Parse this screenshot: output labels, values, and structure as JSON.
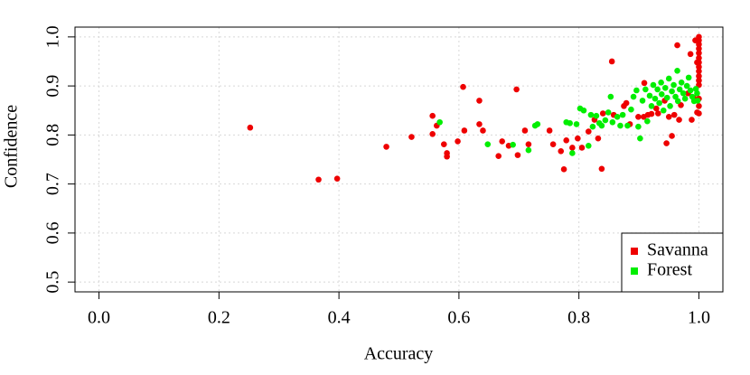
{
  "chart_data": {
    "type": "scatter",
    "x_label": "Accuracy",
    "y_label": "Confidence",
    "xlim": [
      -0.04,
      1.04
    ],
    "ylim": [
      0.48,
      1.02
    ],
    "xticks": [
      {
        "value": 0,
        "label": "0.0"
      },
      0.2,
      0.4,
      0.6,
      0.8,
      {
        "value": 1,
        "label": "1.0"
      }
    ],
    "yticks": [
      0.5,
      0.6,
      0.7,
      0.8,
      0.9,
      {
        "value": 1,
        "label": "1.0"
      }
    ],
    "grid": true,
    "legend": "bottomright",
    "series": [
      {
        "name": "Savanna",
        "color": "#ee0000",
        "x": [
          0.252,
          0.366,
          0.397,
          0.479,
          0.521,
          0.556,
          0.556,
          0.563,
          0.575,
          0.58,
          0.58,
          0.598,
          0.607,
          0.609,
          0.634,
          0.634,
          0.64,
          0.666,
          0.672,
          0.683,
          0.696,
          0.698,
          0.71,
          0.716,
          0.751,
          0.757,
          0.77,
          0.775,
          0.779,
          0.789,
          0.798,
          0.805,
          0.816,
          0.826,
          0.832,
          0.838,
          0.84,
          0.855,
          0.858,
          0.875,
          0.879,
          0.885,
          0.899,
          0.908,
          0.909,
          0.915,
          0.921,
          0.929,
          0.932,
          0.943,
          0.946,
          0.95,
          0.955,
          0.959,
          0.964,
          0.967,
          0.97,
          0.982,
          0.986,
          0.988,
          0.991,
          0.994,
          0.997,
          0.997,
          1,
          1,
          1,
          1,
          1,
          1,
          1,
          1,
          1,
          1,
          1,
          1,
          1,
          1,
          1
        ],
        "values": [
          0.815,
          0.709,
          0.711,
          0.776,
          0.796,
          0.839,
          0.802,
          0.819,
          0.781,
          0.763,
          0.756,
          0.787,
          0.898,
          0.809,
          0.87,
          0.822,
          0.809,
          0.757,
          0.787,
          0.778,
          0.893,
          0.759,
          0.809,
          0.781,
          0.809,
          0.781,
          0.767,
          0.73,
          0.789,
          0.774,
          0.793,
          0.774,
          0.807,
          0.831,
          0.793,
          0.731,
          0.844,
          0.95,
          0.841,
          0.859,
          0.865,
          0.822,
          0.837,
          0.837,
          0.906,
          0.841,
          0.843,
          0.854,
          0.844,
          0.87,
          0.783,
          0.837,
          0.798,
          0.841,
          0.983,
          0.831,
          0.861,
          0.885,
          0.965,
          0.831,
          0.876,
          0.993,
          0.948,
          0.846,
          1,
          0.993,
          0.985,
          0.976,
          0.967,
          0.957,
          0.948,
          0.939,
          0.93,
          0.92,
          0.911,
          0.902,
          0.874,
          0.859,
          0.844
        ]
      },
      {
        "name": "Forest",
        "color": "#00ee00",
        "x": [
          0.568,
          0.648,
          0.69,
          0.716,
          0.727,
          0.731,
          0.779,
          0.785,
          0.789,
          0.796,
          0.802,
          0.808,
          0.816,
          0.82,
          0.823,
          0.829,
          0.834,
          0.838,
          0.844,
          0.849,
          0.853,
          0.856,
          0.864,
          0.869,
          0.873,
          0.881,
          0.887,
          0.891,
          0.896,
          0.899,
          0.902,
          0.906,
          0.911,
          0.914,
          0.918,
          0.921,
          0.924,
          0.927,
          0.931,
          0.934,
          0.937,
          0.938,
          0.941,
          0.944,
          0.947,
          0.95,
          0.952,
          0.955,
          0.958,
          0.961,
          0.964,
          0.965,
          0.968,
          0.971,
          0.974,
          0.977,
          0.98,
          0.983,
          0.986,
          0.989,
          0.992,
          0.995,
          0.997,
          0.998
        ],
        "values": [
          0.826,
          0.781,
          0.78,
          0.769,
          0.819,
          0.822,
          0.826,
          0.824,
          0.763,
          0.822,
          0.854,
          0.85,
          0.778,
          0.841,
          0.817,
          0.839,
          0.824,
          0.819,
          0.83,
          0.846,
          0.878,
          0.826,
          0.837,
          0.819,
          0.841,
          0.819,
          0.852,
          0.878,
          0.891,
          0.817,
          0.793,
          0.87,
          0.893,
          0.828,
          0.88,
          0.859,
          0.902,
          0.874,
          0.893,
          0.865,
          0.907,
          0.883,
          0.85,
          0.896,
          0.876,
          0.915,
          0.859,
          0.889,
          0.902,
          0.878,
          0.931,
          0.869,
          0.893,
          0.907,
          0.885,
          0.874,
          0.9,
          0.917,
          0.891,
          0.878,
          0.869,
          0.894,
          0.885,
          0.87
        ]
      }
    ]
  }
}
